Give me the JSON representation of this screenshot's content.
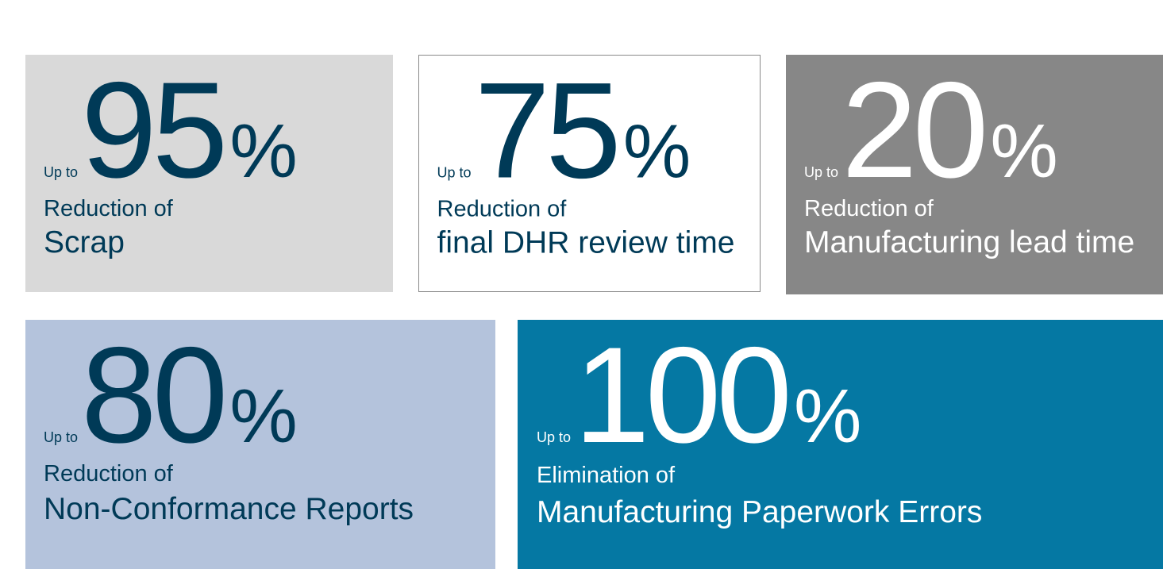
{
  "tiles": [
    {
      "prefix": "Up to",
      "number": "95",
      "unit": "%",
      "line1": "Reduction of",
      "line2": "Scrap"
    },
    {
      "prefix": "Up to",
      "number": "75",
      "unit": "%",
      "line1": "Reduction of",
      "line2": "final DHR review time"
    },
    {
      "prefix": "Up to",
      "number": "20",
      "unit": "%",
      "line1": "Reduction of",
      "line2": "Manufacturing lead time"
    },
    {
      "prefix": "Up to",
      "number": "80",
      "unit": "%",
      "line1": "Reduction of",
      "line2": "Non-Conformance Reports"
    },
    {
      "prefix": "Up to",
      "number": "100",
      "unit": "%",
      "line1": "Elimination of",
      "line2": "Manufacturing Paperwork Errors"
    }
  ]
}
